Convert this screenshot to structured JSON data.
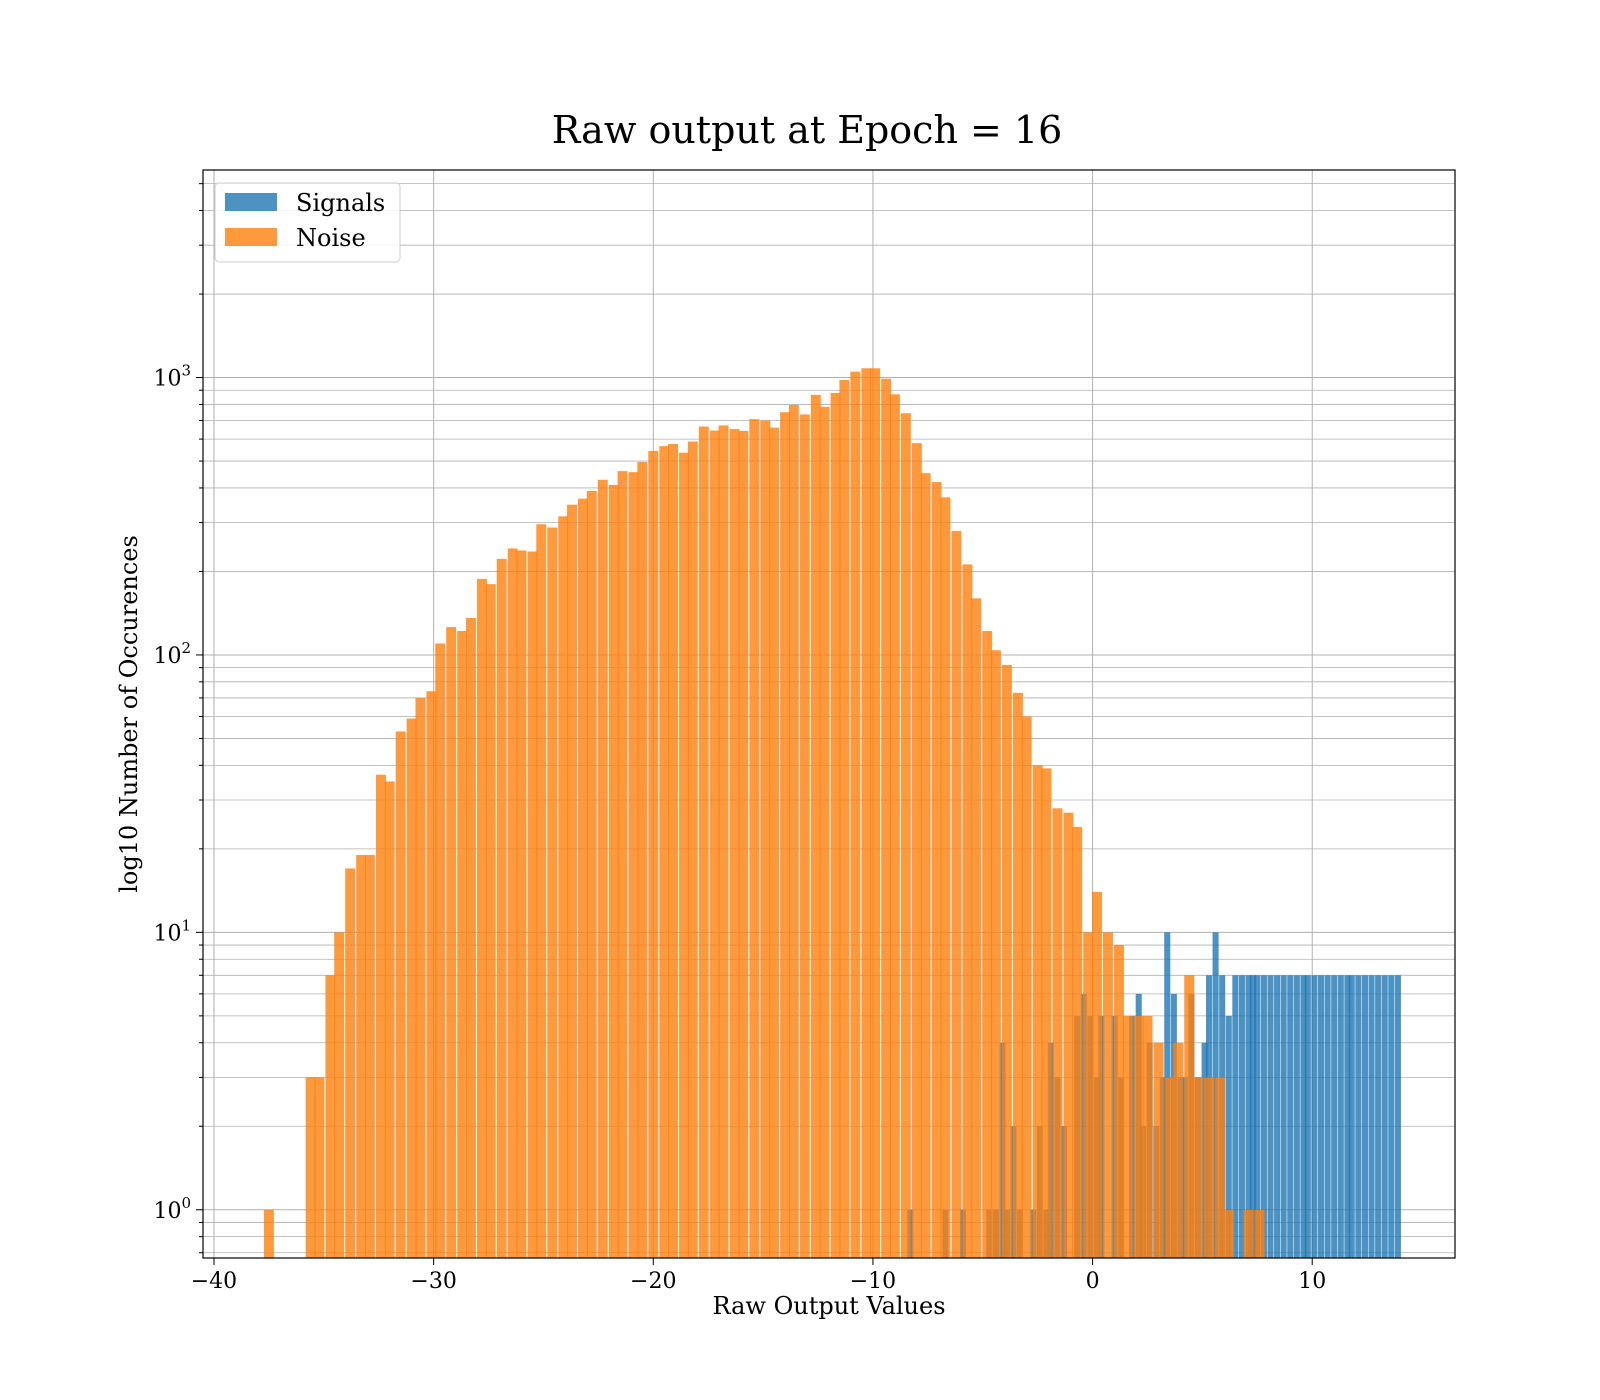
{
  "chart_data": {
    "type": "histogram",
    "title": "Raw output at Epoch = 16",
    "xlabel": "Raw Output Values",
    "ylabel": "log10 Number of Occurences",
    "xlim": [
      -40.5,
      16.5
    ],
    "ylim": [
      0.67,
      5600
    ],
    "yscale": "log",
    "grid": true,
    "legend_position": "upper-left",
    "x_ticks": [
      {
        "value": -40,
        "label": "−40"
      },
      {
        "value": -30,
        "label": "−30"
      },
      {
        "value": -20,
        "label": "−20"
      },
      {
        "value": -10,
        "label": "−10"
      },
      {
        "value": 0,
        "label": "0"
      },
      {
        "value": 10,
        "label": "10"
      }
    ],
    "y_ticks": [
      {
        "value": 1,
        "base": "10",
        "exp": "0"
      },
      {
        "value": 10,
        "base": "10",
        "exp": "1"
      },
      {
        "value": 100,
        "base": "10",
        "exp": "2"
      },
      {
        "value": 1000,
        "base": "10",
        "exp": "3"
      }
    ],
    "series": [
      {
        "name": "Signals",
        "color": "#1f77b4",
        "opacity": 0.8,
        "bin_width": 0.276,
        "bins": [
          [
            -8.3,
            1
          ],
          [
            -6.7,
            1
          ],
          [
            -5.9,
            1
          ],
          [
            -4.7,
            1
          ],
          [
            -4.4,
            1
          ],
          [
            -4.1,
            4
          ],
          [
            -3.9,
            1
          ],
          [
            -3.6,
            2
          ],
          [
            -3.3,
            1
          ],
          [
            -2.7,
            1
          ],
          [
            -2.4,
            2
          ],
          [
            -2.1,
            1
          ],
          [
            -1.9,
            4
          ],
          [
            -1.6,
            3
          ],
          [
            -1.3,
            2
          ],
          [
            -0.7,
            5
          ],
          [
            -0.4,
            6
          ],
          [
            -0.1,
            5
          ],
          [
            0.2,
            3
          ],
          [
            0.4,
            5
          ],
          [
            1.0,
            5
          ],
          [
            1.3,
            3
          ],
          [
            1.8,
            5
          ],
          [
            2.1,
            6
          ],
          [
            2.3,
            2
          ],
          [
            2.6,
            4
          ],
          [
            2.9,
            2
          ],
          [
            3.2,
            3
          ],
          [
            3.4,
            10
          ],
          [
            3.7,
            6
          ],
          [
            4.0,
            3
          ],
          [
            4.2,
            3
          ],
          [
            4.5,
            6
          ],
          [
            4.8,
            3
          ],
          [
            5.1,
            4
          ],
          [
            5.3,
            7
          ],
          [
            5.6,
            10
          ],
          [
            5.9,
            7
          ],
          [
            6.2,
            5
          ],
          [
            6.5,
            7
          ],
          [
            6.8,
            7
          ],
          [
            7.1,
            7
          ],
          [
            7.3,
            7
          ],
          [
            7.5,
            7
          ],
          [
            7.8,
            7
          ],
          [
            8.1,
            7
          ],
          [
            8.4,
            7
          ],
          [
            8.7,
            7
          ],
          [
            9.0,
            7
          ],
          [
            9.3,
            7
          ],
          [
            9.6,
            7
          ],
          [
            9.8,
            7
          ],
          [
            10.1,
            7
          ],
          [
            10.4,
            7
          ],
          [
            10.7,
            7
          ],
          [
            11.0,
            7
          ],
          [
            11.3,
            7
          ],
          [
            11.6,
            7
          ],
          [
            11.8,
            7
          ],
          [
            12.1,
            7
          ],
          [
            12.4,
            7
          ],
          [
            12.7,
            7
          ],
          [
            13.0,
            7
          ],
          [
            13.3,
            7
          ],
          [
            13.6,
            7
          ],
          [
            13.9,
            7
          ]
        ]
      },
      {
        "name": "Noise",
        "color": "#ff7f0e",
        "opacity": 0.8,
        "bin_width": 0.453,
        "bins": [
          [
            -37.5,
            1
          ],
          [
            -36.6,
            0
          ],
          [
            -36.1,
            0
          ],
          [
            -35.6,
            3
          ],
          [
            -35.2,
            3
          ],
          [
            -34.7,
            7
          ],
          [
            -34.3,
            10
          ],
          [
            -33.8,
            17
          ],
          [
            -33.3,
            19
          ],
          [
            -32.9,
            19
          ],
          [
            -32.4,
            37
          ],
          [
            -32.0,
            35
          ],
          [
            -31.5,
            53
          ],
          [
            -31.0,
            59
          ],
          [
            -30.6,
            70
          ],
          [
            -30.1,
            74
          ],
          [
            -29.7,
            110
          ],
          [
            -29.2,
            126
          ],
          [
            -28.7,
            122
          ],
          [
            -28.3,
            136
          ],
          [
            -27.8,
            188
          ],
          [
            -27.4,
            180
          ],
          [
            -26.9,
            222
          ],
          [
            -26.4,
            242
          ],
          [
            -26.0,
            238
          ],
          [
            -25.5,
            236
          ],
          [
            -25.1,
            296
          ],
          [
            -24.6,
            288
          ],
          [
            -24.1,
            316
          ],
          [
            -23.7,
            348
          ],
          [
            -23.2,
            366
          ],
          [
            -22.8,
            390
          ],
          [
            -22.3,
            428
          ],
          [
            -21.8,
            410
          ],
          [
            -21.4,
            460
          ],
          [
            -20.9,
            456
          ],
          [
            -20.5,
            496
          ],
          [
            -20.0,
            544
          ],
          [
            -19.5,
            566
          ],
          [
            -19.1,
            576
          ],
          [
            -18.6,
            536
          ],
          [
            -18.2,
            588
          ],
          [
            -17.7,
            666
          ],
          [
            -17.2,
            644
          ],
          [
            -16.8,
            672
          ],
          [
            -16.3,
            652
          ],
          [
            -15.9,
            642
          ],
          [
            -15.4,
            708
          ],
          [
            -14.9,
            700
          ],
          [
            -14.5,
            660
          ],
          [
            -14.0,
            750
          ],
          [
            -13.6,
            796
          ],
          [
            -13.1,
            736
          ],
          [
            -12.6,
            866
          ],
          [
            -12.2,
            784
          ],
          [
            -11.7,
            880
          ],
          [
            -11.3,
            980
          ],
          [
            -10.8,
            1050
          ],
          [
            -10.3,
            1080
          ],
          [
            -9.9,
            1080
          ],
          [
            -9.4,
            990
          ],
          [
            -9.0,
            870
          ],
          [
            -8.5,
            744
          ],
          [
            -8.0,
            580
          ],
          [
            -7.6,
            452
          ],
          [
            -7.1,
            420
          ],
          [
            -6.7,
            370
          ],
          [
            -6.2,
            280
          ],
          [
            -5.7,
            212
          ],
          [
            -5.3,
            160
          ],
          [
            -4.8,
            122
          ],
          [
            -4.4,
            104
          ],
          [
            -3.9,
            92
          ],
          [
            -3.4,
            73
          ],
          [
            -3.0,
            60
          ],
          [
            -2.5,
            40
          ],
          [
            -2.1,
            39
          ],
          [
            -1.6,
            28
          ],
          [
            -1.1,
            27
          ],
          [
            -0.7,
            24
          ],
          [
            -0.2,
            10
          ],
          [
            0.2,
            14
          ],
          [
            0.7,
            10
          ],
          [
            1.2,
            9
          ],
          [
            1.6,
            5
          ],
          [
            2.1,
            5
          ],
          [
            2.5,
            5
          ],
          [
            3.0,
            4
          ],
          [
            3.5,
            3
          ],
          [
            3.9,
            4
          ],
          [
            4.4,
            7
          ],
          [
            4.8,
            3
          ],
          [
            5.3,
            3
          ],
          [
            5.8,
            3
          ],
          [
            6.2,
            1
          ],
          [
            6.7,
            0
          ],
          [
            7.1,
            1
          ],
          [
            7.6,
            1
          ]
        ]
      }
    ]
  }
}
